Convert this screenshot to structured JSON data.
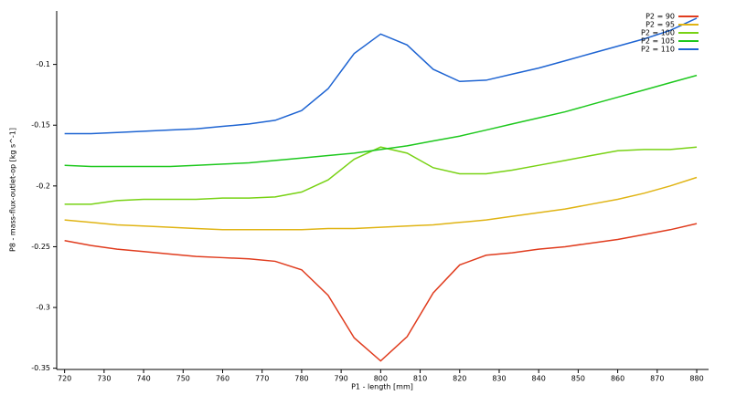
{
  "chart_data": {
    "type": "line",
    "x_label": "P1 - length  [mm]",
    "y_label": "P8 - mass-flux-outlet-op  [kg s^-1]",
    "x": [
      720,
      726.7,
      733.3,
      740,
      746.7,
      753.3,
      760,
      766.7,
      773.3,
      780,
      786.7,
      793.3,
      800,
      806.7,
      813.3,
      820,
      826.7,
      833.3,
      840,
      846.7,
      853.3,
      860,
      866.7,
      873.3,
      880
    ],
    "series": [
      {
        "name": "P2 = 90",
        "color": "#e03c1e",
        "values": [
          -0.245,
          -0.249,
          -0.252,
          -0.254,
          -0.256,
          -0.258,
          -0.259,
          -0.26,
          -0.262,
          -0.269,
          -0.29,
          -0.325,
          -0.344,
          -0.324,
          -0.288,
          -0.265,
          -0.257,
          -0.255,
          -0.252,
          -0.25,
          -0.247,
          -0.244,
          -0.24,
          -0.236,
          -0.231
        ]
      },
      {
        "name": "P2 = 95",
        "color": "#e0b414",
        "values": [
          -0.228,
          -0.23,
          -0.232,
          -0.233,
          -0.234,
          -0.235,
          -0.236,
          -0.236,
          -0.236,
          -0.236,
          -0.235,
          -0.235,
          -0.234,
          -0.233,
          -0.232,
          -0.23,
          -0.228,
          -0.225,
          -0.222,
          -0.219,
          -0.215,
          -0.211,
          -0.206,
          -0.2,
          -0.193
        ]
      },
      {
        "name": "P2 = 100",
        "color": "#78d214",
        "values": [
          -0.215,
          -0.215,
          -0.212,
          -0.211,
          -0.211,
          -0.211,
          -0.21,
          -0.21,
          -0.209,
          -0.205,
          -0.195,
          -0.178,
          -0.168,
          -0.173,
          -0.185,
          -0.19,
          -0.19,
          -0.187,
          -0.183,
          -0.179,
          -0.175,
          -0.171,
          -0.17,
          -0.17,
          -0.168
        ]
      },
      {
        "name": "P2 = 105",
        "color": "#1ec81e",
        "values": [
          -0.183,
          -0.184,
          -0.184,
          -0.184,
          -0.184,
          -0.183,
          -0.182,
          -0.181,
          -0.179,
          -0.177,
          -0.175,
          -0.173,
          -0.17,
          -0.167,
          -0.163,
          -0.159,
          -0.154,
          -0.149,
          -0.144,
          -0.139,
          -0.133,
          -0.127,
          -0.121,
          -0.115,
          -0.109
        ]
      },
      {
        "name": "P2 = 110",
        "color": "#1e64d2",
        "values": [
          -0.157,
          -0.157,
          -0.156,
          -0.155,
          -0.154,
          -0.153,
          -0.151,
          -0.149,
          -0.146,
          -0.138,
          -0.12,
          -0.091,
          -0.075,
          -0.084,
          -0.104,
          -0.114,
          -0.113,
          -0.108,
          -0.103,
          -0.097,
          -0.091,
          -0.085,
          -0.079,
          -0.072,
          -0.062
        ]
      }
    ],
    "xlim": [
      718,
      883
    ],
    "xticks": [
      720,
      730,
      740,
      750,
      760,
      770,
      780,
      790,
      800,
      810,
      820,
      830,
      840,
      850,
      860,
      870,
      880
    ],
    "ylim": [
      -0.351,
      -0.056
    ],
    "yticks": [
      -0.35,
      -0.3,
      -0.25,
      -0.2,
      -0.15,
      -0.1
    ],
    "grid": false,
    "legend": "top-right"
  }
}
